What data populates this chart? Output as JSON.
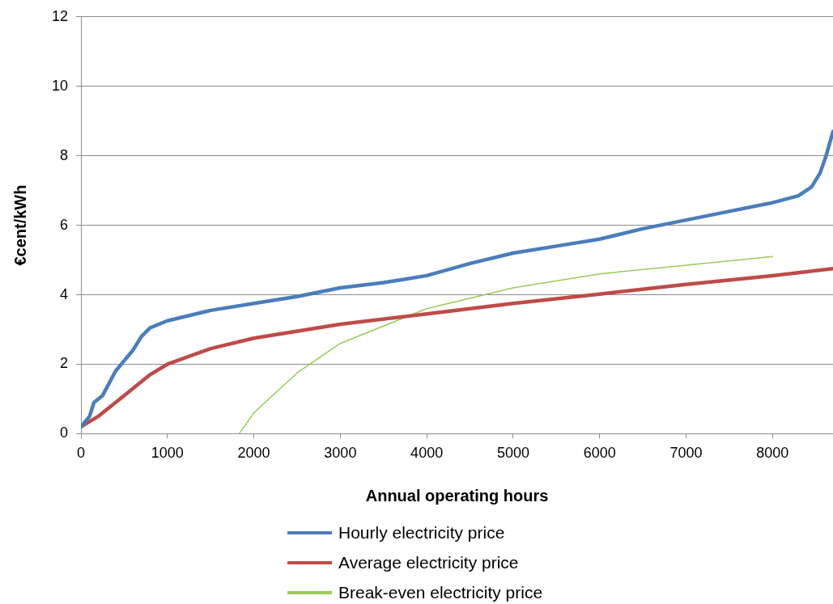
{
  "chart_data": {
    "type": "line",
    "xlabel": "Annual operating hours",
    "ylabel": "€cent/kWh",
    "xlim": [
      0,
      8700
    ],
    "xticks": [
      0,
      1000,
      2000,
      3000,
      4000,
      5000,
      6000,
      7000,
      8000
    ],
    "ylim": [
      0,
      12
    ],
    "yticks": [
      0,
      2,
      4,
      6,
      8,
      10,
      12
    ],
    "grid": "y",
    "legend": "bottom",
    "marker": "none",
    "line_style": "solid",
    "series": [
      {
        "name": "Hourly electricity price",
        "color": "#4a7ebb",
        "x": [
          0,
          100,
          150,
          250,
          400,
          500,
          600,
          700,
          800,
          1000,
          1500,
          2000,
          2500,
          3000,
          3500,
          4000,
          4500,
          5000,
          5500,
          6000,
          6500,
          7000,
          7500,
          8000,
          8300,
          8450,
          8550,
          8620,
          8700
        ],
        "values": [
          0.2,
          0.5,
          0.9,
          1.1,
          1.8,
          2.1,
          2.4,
          2.8,
          3.05,
          3.25,
          3.55,
          3.75,
          3.95,
          4.2,
          4.35,
          4.55,
          4.9,
          5.2,
          5.4,
          5.6,
          5.9,
          6.15,
          6.4,
          6.65,
          6.85,
          7.1,
          7.5,
          8.0,
          8.7
        ]
      },
      {
        "name": "Average electricity price",
        "color": "#be4b48",
        "x": [
          0,
          200,
          500,
          800,
          1000,
          1500,
          2000,
          3000,
          4000,
          5000,
          6000,
          7000,
          8000,
          8700
        ],
        "values": [
          0.2,
          0.5,
          1.1,
          1.7,
          2.0,
          2.45,
          2.75,
          3.15,
          3.45,
          3.75,
          4.02,
          4.3,
          4.55,
          4.75
        ]
      },
      {
        "name": "Break-even electricity price",
        "color": "#9bcb5a",
        "x": [
          1830,
          2000,
          2500,
          3000,
          4000,
          5000,
          6000,
          7000,
          8000
        ],
        "values": [
          0,
          0.6,
          1.75,
          2.6,
          3.6,
          4.2,
          4.6,
          4.85,
          5.1
        ]
      }
    ]
  }
}
